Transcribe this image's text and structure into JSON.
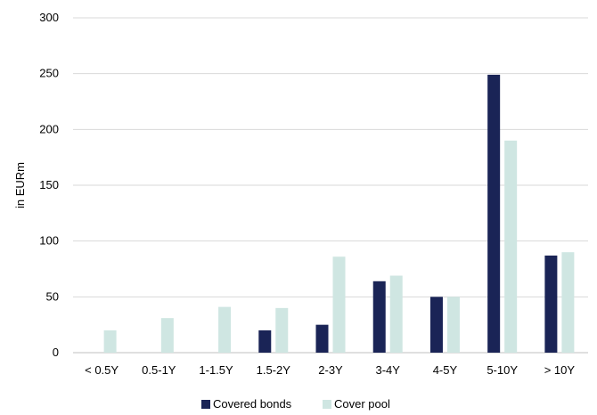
{
  "chart_data": {
    "type": "bar",
    "title": "",
    "xlabel": "",
    "ylabel": "in EURm",
    "ylim": [
      0,
      300
    ],
    "yticks": [
      0,
      50,
      100,
      150,
      200,
      250,
      300
    ],
    "grid": true,
    "legend_position": "bottom",
    "categories": [
      "< 0.5Y",
      "0.5-1Y",
      "1-1.5Y",
      "1.5-2Y",
      "2-3Y",
      "3-4Y",
      "4-5Y",
      "5-10Y",
      "> 10Y"
    ],
    "series": [
      {
        "name": "Covered bonds",
        "color": "#1a2456",
        "values": [
          0,
          0,
          0,
          20,
          25,
          64,
          50,
          249,
          87
        ]
      },
      {
        "name": "Cover pool",
        "color": "#cfe6e2",
        "values": [
          20,
          31,
          41,
          40,
          86,
          69,
          50,
          190,
          90
        ]
      }
    ]
  }
}
